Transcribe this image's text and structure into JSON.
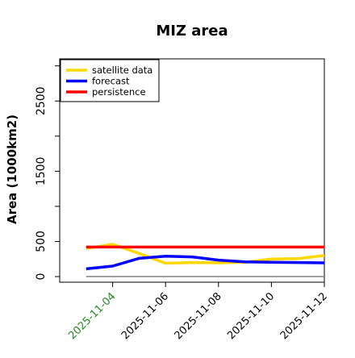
{
  "chart_data": {
    "type": "line",
    "title": "MIZ area",
    "xlabel": "",
    "ylabel": "Area (1000km2)",
    "x": [
      "2025-11-03",
      "2025-11-04",
      "2025-11-05",
      "2025-11-06",
      "2025-11-07",
      "2025-11-08",
      "2025-11-09",
      "2025-11-10",
      "2025-11-11",
      "2025-11-12"
    ],
    "xlim": [
      "2025-11-02",
      "2025-11-12"
    ],
    "ylim": [
      -80,
      3100
    ],
    "xtick_labels": [
      "2025-11-04",
      "2025-11-06",
      "2025-11-08",
      "2025-11-10",
      "2025-11-12"
    ],
    "xtick_dates": [
      "2025-11-04",
      "2025-11-06",
      "2025-11-08",
      "2025-11-10",
      "2025-11-12"
    ],
    "ytick_labels": [
      "0",
      "500",
      "1500",
      "2500"
    ],
    "ytick_values": [
      0,
      500,
      1500,
      2500
    ],
    "minor_yticks": [
      1000,
      2000,
      3000
    ],
    "highlight_tick": "2025-11-04",
    "highlight_color": "#228B22",
    "series": [
      {
        "name": "satellite data",
        "color": "#FFD700",
        "values": [
          400,
          460,
          330,
          190,
          200,
          195,
          205,
          250,
          255,
          300
        ]
      },
      {
        "name": "forecast",
        "color": "#0000FF",
        "values": [
          110,
          150,
          260,
          290,
          280,
          235,
          210,
          205,
          200,
          195
        ]
      },
      {
        "name": "persistence",
        "color": "#FF0000",
        "values": [
          420,
          420,
          420,
          420,
          420,
          420,
          420,
          420,
          420,
          420
        ]
      }
    ],
    "baseline": {
      "value": 0,
      "color": "#808080"
    },
    "legend_position": "top-left",
    "grid": false
  }
}
